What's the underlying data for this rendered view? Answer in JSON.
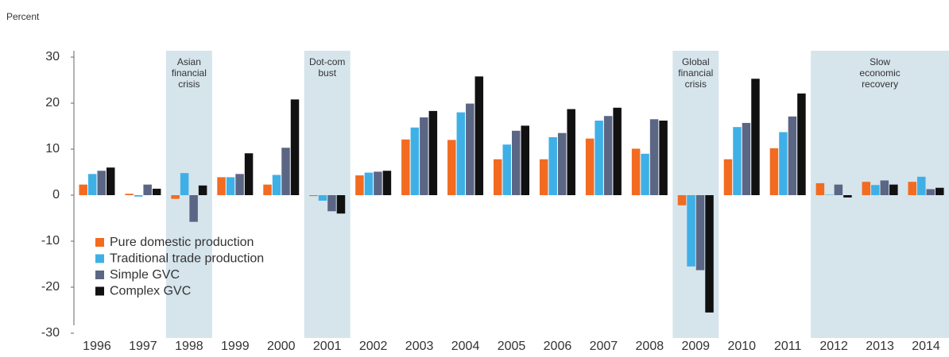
{
  "chart_data": {
    "type": "bar",
    "title": "Percent",
    "categories": [
      "1996",
      "1997",
      "1998",
      "1999",
      "2000",
      "2001",
      "2002",
      "2003",
      "2004",
      "2005",
      "2006",
      "2007",
      "2008",
      "2009",
      "2010",
      "2011",
      "2012",
      "2013",
      "2014"
    ],
    "series": [
      {
        "name": "Pure domestic production",
        "color": "#f26b21",
        "values": [
          2.3,
          0.3,
          -0.8,
          3.9,
          2.3,
          -0.2,
          4.3,
          12.1,
          12.0,
          7.8,
          7.8,
          12.3,
          10.1,
          -2.2,
          7.8,
          10.2,
          2.6,
          2.9,
          2.9
        ]
      },
      {
        "name": "Traditional trade production",
        "color": "#3fb0e6",
        "values": [
          4.6,
          -0.3,
          4.8,
          3.9,
          4.4,
          -1.2,
          4.9,
          14.7,
          18.0,
          11.0,
          12.6,
          16.2,
          9.0,
          -15.5,
          14.8,
          13.7,
          0.1,
          2.2,
          4.0
        ]
      },
      {
        "name": "Simple GVC",
        "color": "#5b6685",
        "values": [
          5.3,
          2.3,
          -5.8,
          4.6,
          10.3,
          -3.5,
          5.1,
          16.9,
          19.9,
          14.0,
          13.5,
          17.2,
          16.5,
          -16.3,
          15.7,
          17.1,
          2.3,
          3.2,
          1.3
        ]
      },
      {
        "name": "Complex GVC",
        "color": "#111111",
        "values": [
          6.0,
          1.4,
          2.1,
          9.1,
          20.8,
          -4.0,
          5.3,
          18.3,
          25.8,
          15.1,
          18.7,
          19.0,
          16.2,
          -25.5,
          25.3,
          22.1,
          -0.5,
          2.3,
          1.6
        ]
      }
    ],
    "ylim": [
      -30,
      30
    ],
    "yticks": [
      -30,
      -20,
      -10,
      0,
      10,
      20,
      30
    ],
    "shading_color": "#d6e4ec",
    "periods": [
      {
        "lines": [
          "Asian",
          "financial",
          "crisis"
        ],
        "start": "1998",
        "end": "1998"
      },
      {
        "lines": [
          "Dot-com",
          "bust"
        ],
        "start": "2001",
        "end": "2001"
      },
      {
        "lines": [
          "Global",
          "financial",
          "crisis"
        ],
        "start": "2009",
        "end": "2009"
      },
      {
        "lines": [
          "Slow",
          "economic",
          "recovery"
        ],
        "start": "2012",
        "end": "2014"
      }
    ]
  }
}
